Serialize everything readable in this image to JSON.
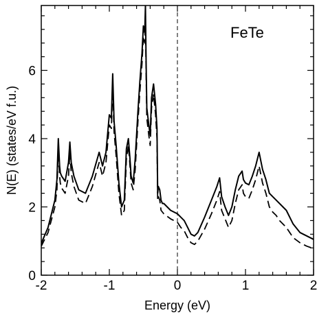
{
  "chart_data": {
    "type": "line",
    "title": "",
    "annotation": "FeTe",
    "xlabel": "Energy (eV)",
    "ylabel": "N(E) (states/eV f.u.)",
    "xlim": [
      -2,
      2
    ],
    "ylim": [
      0,
      7.9
    ],
    "xticks": [
      -2,
      -1,
      0,
      1,
      2
    ],
    "yticks": [
      0,
      2,
      4,
      6
    ],
    "xtick_labels": [
      "-2",
      "-1",
      "0",
      "1",
      "2"
    ],
    "ytick_labels": [
      "0",
      "2",
      "4",
      "6"
    ],
    "fermi_level": 0,
    "grid": false,
    "series": [
      {
        "style": "solid",
        "x": [
          -2.0,
          -1.9,
          -1.8,
          -1.77,
          -1.75,
          -1.73,
          -1.72,
          -1.7,
          -1.65,
          -1.6,
          -1.58,
          -1.56,
          -1.52,
          -1.45,
          -1.35,
          -1.25,
          -1.15,
          -1.1,
          -1.05,
          -1.0,
          -0.97,
          -0.95,
          -0.93,
          -0.9,
          -0.86,
          -0.82,
          -0.78,
          -0.75,
          -0.72,
          -0.7,
          -0.68,
          -0.65,
          -0.62,
          -0.58,
          -0.55,
          -0.52,
          -0.5,
          -0.48,
          -0.47,
          -0.46,
          -0.45,
          -0.42,
          -0.4,
          -0.38,
          -0.35,
          -0.32,
          -0.3,
          -0.29,
          -0.28,
          -0.26,
          -0.24,
          -0.22,
          -0.2,
          -0.1,
          0.0,
          0.05,
          0.1,
          0.15,
          0.2,
          0.25,
          0.3,
          0.4,
          0.5,
          0.58,
          0.62,
          0.65,
          0.7,
          0.75,
          0.8,
          0.85,
          0.9,
          0.95,
          0.97,
          1.0,
          1.05,
          1.1,
          1.15,
          1.2,
          1.25,
          1.3,
          1.35,
          1.4,
          1.45,
          1.5,
          1.6,
          1.7,
          1.8,
          1.9,
          2.0
        ],
        "y": [
          0.93,
          1.4,
          2.2,
          2.8,
          4.0,
          3.2,
          3.0,
          2.9,
          2.75,
          3.3,
          3.9,
          3.3,
          2.9,
          2.5,
          2.4,
          2.9,
          3.6,
          3.2,
          3.6,
          4.7,
          4.6,
          5.9,
          4.5,
          3.8,
          2.7,
          2.0,
          2.2,
          3.7,
          4.0,
          3.5,
          2.9,
          2.7,
          3.4,
          4.8,
          5.7,
          6.5,
          7.3,
          7.1,
          7.9,
          6.2,
          4.9,
          4.4,
          4.1,
          5.2,
          5.6,
          5.0,
          4.3,
          2.4,
          2.6,
          2.5,
          2.2,
          2.1,
          2.1,
          1.9,
          1.8,
          1.7,
          1.6,
          1.4,
          1.2,
          1.15,
          1.25,
          1.7,
          2.2,
          2.6,
          2.85,
          2.3,
          2.0,
          1.75,
          2.0,
          2.5,
          2.9,
          3.05,
          2.8,
          2.7,
          2.65,
          2.9,
          3.2,
          3.6,
          3.1,
          2.8,
          2.4,
          2.3,
          2.2,
          2.1,
          1.9,
          1.5,
          1.25,
          1.15,
          1.05
        ]
      },
      {
        "style": "dashed",
        "x": [
          -2.0,
          -1.9,
          -1.8,
          -1.77,
          -1.75,
          -1.73,
          -1.72,
          -1.7,
          -1.65,
          -1.6,
          -1.58,
          -1.56,
          -1.52,
          -1.45,
          -1.35,
          -1.25,
          -1.15,
          -1.1,
          -1.05,
          -1.0,
          -0.97,
          -0.95,
          -0.93,
          -0.9,
          -0.86,
          -0.82,
          -0.78,
          -0.75,
          -0.72,
          -0.7,
          -0.68,
          -0.65,
          -0.62,
          -0.58,
          -0.55,
          -0.52,
          -0.5,
          -0.48,
          -0.47,
          -0.46,
          -0.45,
          -0.42,
          -0.4,
          -0.38,
          -0.35,
          -0.32,
          -0.3,
          -0.29,
          -0.28,
          -0.26,
          -0.24,
          -0.22,
          -0.2,
          -0.1,
          0.0,
          0.05,
          0.1,
          0.15,
          0.2,
          0.25,
          0.3,
          0.4,
          0.5,
          0.58,
          0.62,
          0.65,
          0.7,
          0.75,
          0.8,
          0.85,
          0.9,
          0.95,
          0.97,
          1.0,
          1.05,
          1.1,
          1.15,
          1.2,
          1.25,
          1.3,
          1.35,
          1.4,
          1.45,
          1.5,
          1.6,
          1.7,
          1.8,
          1.9,
          2.0
        ],
        "y": [
          0.85,
          1.25,
          2.0,
          2.5,
          3.7,
          2.9,
          2.7,
          2.55,
          2.4,
          2.9,
          3.6,
          3.0,
          2.6,
          2.2,
          2.1,
          2.6,
          3.3,
          2.9,
          3.3,
          4.4,
          4.3,
          5.6,
          4.2,
          3.5,
          2.4,
          1.75,
          1.9,
          3.4,
          3.8,
          3.3,
          2.7,
          2.5,
          3.1,
          4.5,
          5.4,
          6.2,
          7.0,
          6.8,
          7.5,
          5.9,
          4.6,
          4.1,
          3.8,
          4.9,
          5.3,
          4.7,
          4.0,
          2.2,
          2.3,
          2.2,
          1.9,
          1.85,
          1.8,
          1.65,
          1.55,
          1.4,
          1.3,
          1.1,
          0.95,
          0.9,
          1.0,
          1.35,
          1.8,
          2.2,
          2.45,
          1.9,
          1.65,
          1.4,
          1.6,
          2.1,
          2.5,
          2.65,
          2.4,
          2.3,
          2.25,
          2.5,
          2.8,
          3.2,
          2.7,
          2.4,
          2.0,
          1.85,
          1.75,
          1.6,
          1.4,
          1.1,
          0.95,
          0.85,
          0.78
        ]
      }
    ]
  }
}
